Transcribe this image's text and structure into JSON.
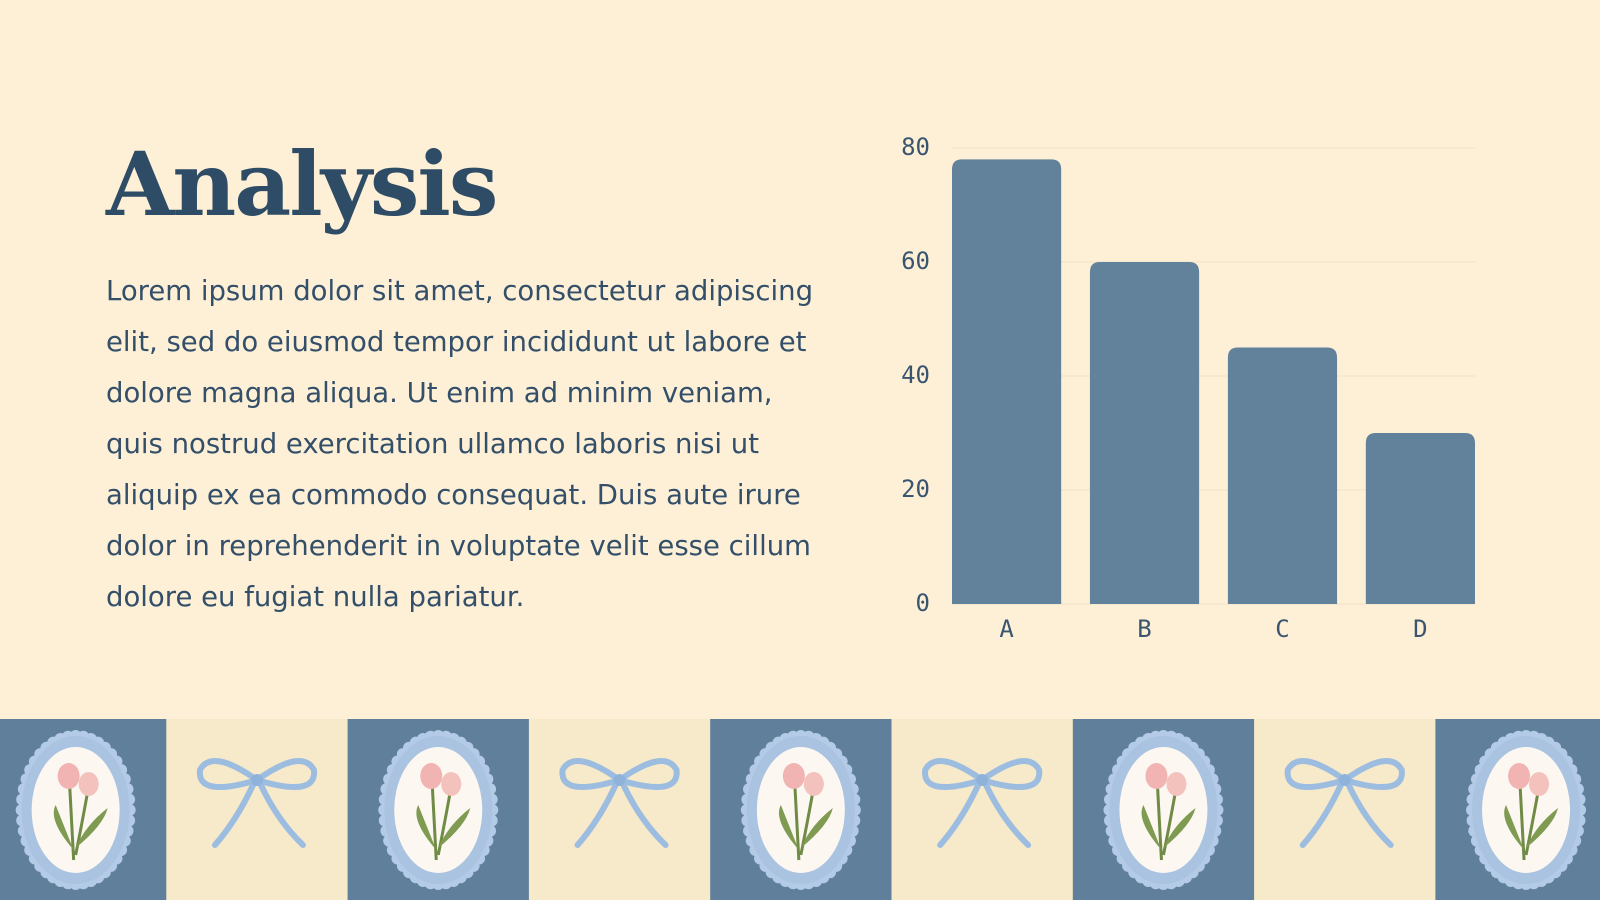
{
  "title": "Analysis",
  "body": "Lorem ipsum dolor sit amet, consectetur adipiscing elit, sed do eiusmod tempor incididunt ut labore et dolore magna aliqua. Ut enim ad minim veniam, quis nostrud exercitation ullamco laboris nisi ut aliquip ex ea commodo consequat. Duis aute irure dolor in reprehenderit in voluptate velit esse cillum dolore eu fugiat nulla pariatur.",
  "chart_data": {
    "type": "bar",
    "categories": [
      "A",
      "B",
      "C",
      "D"
    ],
    "values": [
      78,
      60,
      45,
      30
    ],
    "color": "#62829c",
    "ylim": [
      0,
      80
    ],
    "yticks": [
      0,
      20,
      40,
      60,
      80
    ],
    "grid": true
  }
}
